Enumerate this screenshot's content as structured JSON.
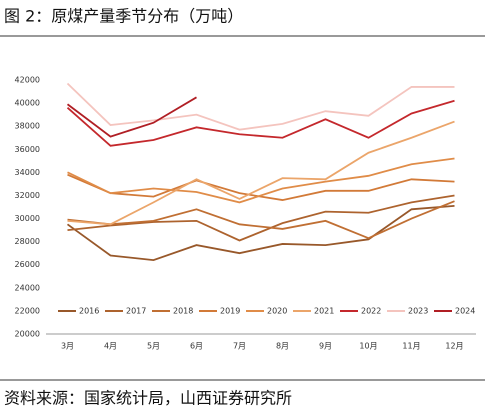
{
  "header": {
    "title": "图 2：原煤产量季节分布（万吨）"
  },
  "chart_data": {
    "type": "line",
    "categories": [
      "3月",
      "4月",
      "5月",
      "6月",
      "7月",
      "8月",
      "9月",
      "10月",
      "11月",
      "12月"
    ],
    "series": [
      {
        "name": "2016",
        "color": "#98582a",
        "values": [
          29500,
          26800,
          26400,
          27700,
          27000,
          27800,
          27700,
          28200,
          30800,
          31100
        ]
      },
      {
        "name": "2017",
        "color": "#ad632e",
        "values": [
          29000,
          29400,
          29700,
          29800,
          28100,
          29600,
          30600,
          30500,
          31400,
          32000
        ]
      },
      {
        "name": "2018",
        "color": "#c06f33",
        "values": [
          29900,
          29500,
          29800,
          30800,
          29500,
          29100,
          29800,
          28300,
          30000,
          31500
        ]
      },
      {
        "name": "2019",
        "color": "#d27a38",
        "values": [
          33800,
          32200,
          31900,
          33300,
          32200,
          31600,
          32400,
          32400,
          33400,
          33200
        ]
      },
      {
        "name": "2020",
        "color": "#e08c48",
        "values": [
          34000,
          32200,
          32600,
          32300,
          31400,
          32600,
          33200,
          33700,
          34700,
          35200
        ]
      },
      {
        "name": "2021",
        "color": "#eba56a",
        "values": [
          29800,
          29500,
          31400,
          33400,
          31700,
          33500,
          33400,
          35700,
          37000,
          38400
        ]
      },
      {
        "name": "2022",
        "color": "#c4282c",
        "values": [
          39600,
          36300,
          36800,
          37900,
          37300,
          37000,
          38600,
          37000,
          39100,
          40200
        ]
      },
      {
        "name": "2023",
        "color": "#f4c4be",
        "values": [
          41700,
          38100,
          38500,
          39000,
          37700,
          38200,
          39300,
          38900,
          41400,
          41400
        ]
      },
      {
        "name": "2024",
        "color": "#b01e24",
        "values": [
          39900,
          37100,
          38300,
          40500,
          null,
          null,
          null,
          null,
          null,
          null
        ]
      }
    ],
    "ylim": [
      20000,
      42000
    ],
    "yticks": [
      20000,
      22000,
      24000,
      26000,
      28000,
      30000,
      32000,
      34000,
      36000,
      38000,
      40000,
      42000
    ]
  },
  "footer": {
    "source": "资料来源：国家统计局，山西证券研究所"
  }
}
